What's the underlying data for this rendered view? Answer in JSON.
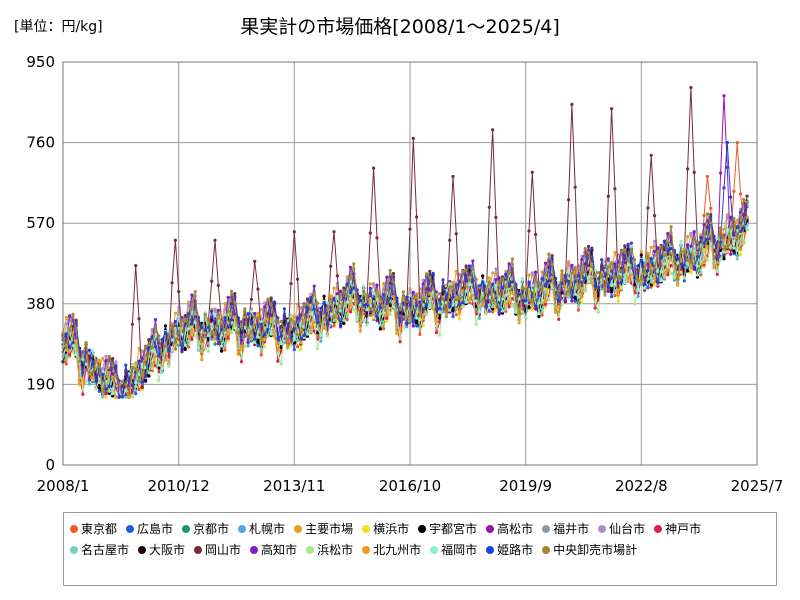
{
  "chart_data": {
    "type": "line",
    "title": "果実計の市場価格[2008/1～2025/4]",
    "unit_label": "[単位：円/kg]",
    "y_ticks": [
      0,
      190,
      380,
      570,
      760,
      950
    ],
    "ylim": [
      0,
      950
    ],
    "x_ticks": [
      "2008/1",
      "2010/12",
      "2013/11",
      "2016/10",
      "2019/9",
      "2022/8",
      "2025/7"
    ],
    "x_start": "2008/1",
    "x_end": "2025/7",
    "data_end": "2025/4",
    "grid": true,
    "legend_position": "bottom",
    "base_trend": [
      {
        "x": "2008/1",
        "y": 300
      },
      {
        "x": "2009/6",
        "y": 170
      },
      {
        "x": "2010/12",
        "y": 320
      },
      {
        "x": "2012/6",
        "y": 330
      },
      {
        "x": "2013/11",
        "y": 320
      },
      {
        "x": "2015/4",
        "y": 390
      },
      {
        "x": "2016/10",
        "y": 370
      },
      {
        "x": "2018/3",
        "y": 410
      },
      {
        "x": "2019/9",
        "y": 400
      },
      {
        "x": "2021/3",
        "y": 440
      },
      {
        "x": "2022/8",
        "y": 460
      },
      {
        "x": "2024/1",
        "y": 500
      },
      {
        "x": "2025/4",
        "y": 560
      }
    ],
    "series": [
      {
        "name": "東京都",
        "color": "#f05a28",
        "peaks": [
          {
            "x": "2024/4",
            "y": 680
          },
          {
            "x": "2025/1",
            "y": 760
          }
        ]
      },
      {
        "name": "広島市",
        "color": "#1a5fe0",
        "peaks": []
      },
      {
        "name": "京都市",
        "color": "#1a9a6a",
        "peaks": []
      },
      {
        "name": "札幌市",
        "color": "#4aa8e8",
        "peaks": []
      },
      {
        "name": "主要市場",
        "color": "#e8a020",
        "peaks": []
      },
      {
        "name": "横浜市",
        "color": "#f0e020",
        "peaks": []
      },
      {
        "name": "宇都宮市",
        "color": "#000000",
        "peaks": []
      },
      {
        "name": "高松市",
        "color": "#9a10b0",
        "peaks": [
          {
            "x": "2024/9",
            "y": 870
          }
        ]
      },
      {
        "name": "福井市",
        "color": "#8a9aa8",
        "peaks": []
      },
      {
        "name": "仙台市",
        "color": "#b08ad0",
        "peaks": []
      },
      {
        "name": "神戸市",
        "color": "#e02050",
        "peaks": []
      },
      {
        "name": "名古屋市",
        "color": "#7ad0c0",
        "peaks": []
      },
      {
        "name": "大阪市",
        "color": "#200010",
        "peaks": []
      },
      {
        "name": "岡山市",
        "color": "#7a2a3a",
        "peaks": [
          {
            "x": "2009/11",
            "y": 470
          },
          {
            "x": "2010/11",
            "y": 530
          },
          {
            "x": "2011/11",
            "y": 530
          },
          {
            "x": "2012/11",
            "y": 480
          },
          {
            "x": "2013/11",
            "y": 550
          },
          {
            "x": "2014/11",
            "y": 550
          },
          {
            "x": "2015/11",
            "y": 700
          },
          {
            "x": "2016/11",
            "y": 770
          },
          {
            "x": "2017/11",
            "y": 680
          },
          {
            "x": "2018/11",
            "y": 790
          },
          {
            "x": "2019/11",
            "y": 690
          },
          {
            "x": "2020/11",
            "y": 850
          },
          {
            "x": "2021/11",
            "y": 840
          },
          {
            "x": "2022/11",
            "y": 730
          },
          {
            "x": "2023/11",
            "y": 890
          }
        ]
      },
      {
        "name": "高知市",
        "color": "#8020c0",
        "peaks": []
      },
      {
        "name": "浜松市",
        "color": "#a8e890",
        "peaks": []
      },
      {
        "name": "北九州市",
        "color": "#f09a20",
        "peaks": []
      },
      {
        "name": "福岡市",
        "color": "#90f0c8",
        "peaks": []
      },
      {
        "name": "姫路市",
        "color": "#2040e0",
        "peaks": [
          {
            "x": "2024/10",
            "y": 760
          }
        ]
      },
      {
        "name": "中央卸売市場計",
        "color": "#a08830",
        "peaks": []
      }
    ]
  }
}
